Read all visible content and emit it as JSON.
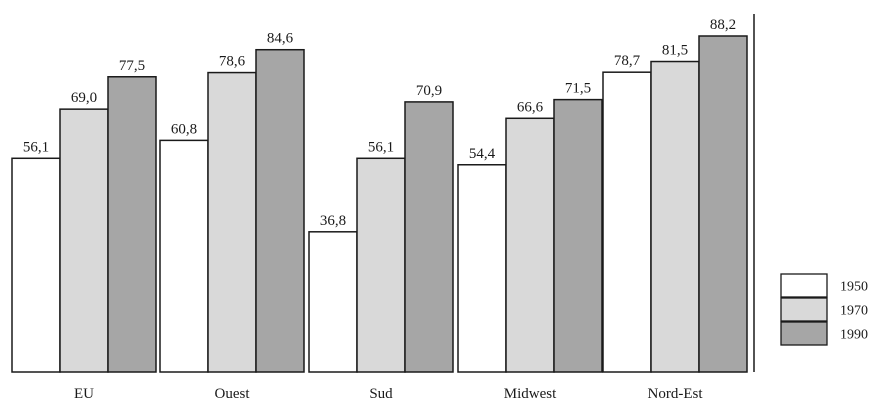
{
  "chart_data": {
    "type": "bar",
    "title": "",
    "xlabel": "",
    "ylabel": "",
    "categories": [
      "EU",
      "Ouest",
      "Sud",
      "Midwest",
      "Nord-Est"
    ],
    "series": [
      {
        "name": "1950",
        "color": "#ffffff",
        "values": [
          56.1,
          60.8,
          36.8,
          54.4,
          78.7
        ],
        "labels": [
          "56,1",
          "60,8",
          "36,8",
          "54,4",
          "78,7"
        ]
      },
      {
        "name": "1970",
        "color": "#d9d9d9",
        "values": [
          69.0,
          78.6,
          56.1,
          66.6,
          81.5
        ],
        "labels": [
          "69,0",
          "78,6",
          "56,1",
          "66,6",
          "81,5"
        ]
      },
      {
        "name": "1990",
        "color": "#a6a6a6",
        "values": [
          77.5,
          84.6,
          70.9,
          71.5,
          88.2
        ],
        "labels": [
          "77,5",
          "84,6",
          "70,9",
          "71,5",
          "88,2"
        ]
      }
    ],
    "ylim": [
      0,
      88.2
    ],
    "grid": false,
    "legend_position": "right"
  }
}
